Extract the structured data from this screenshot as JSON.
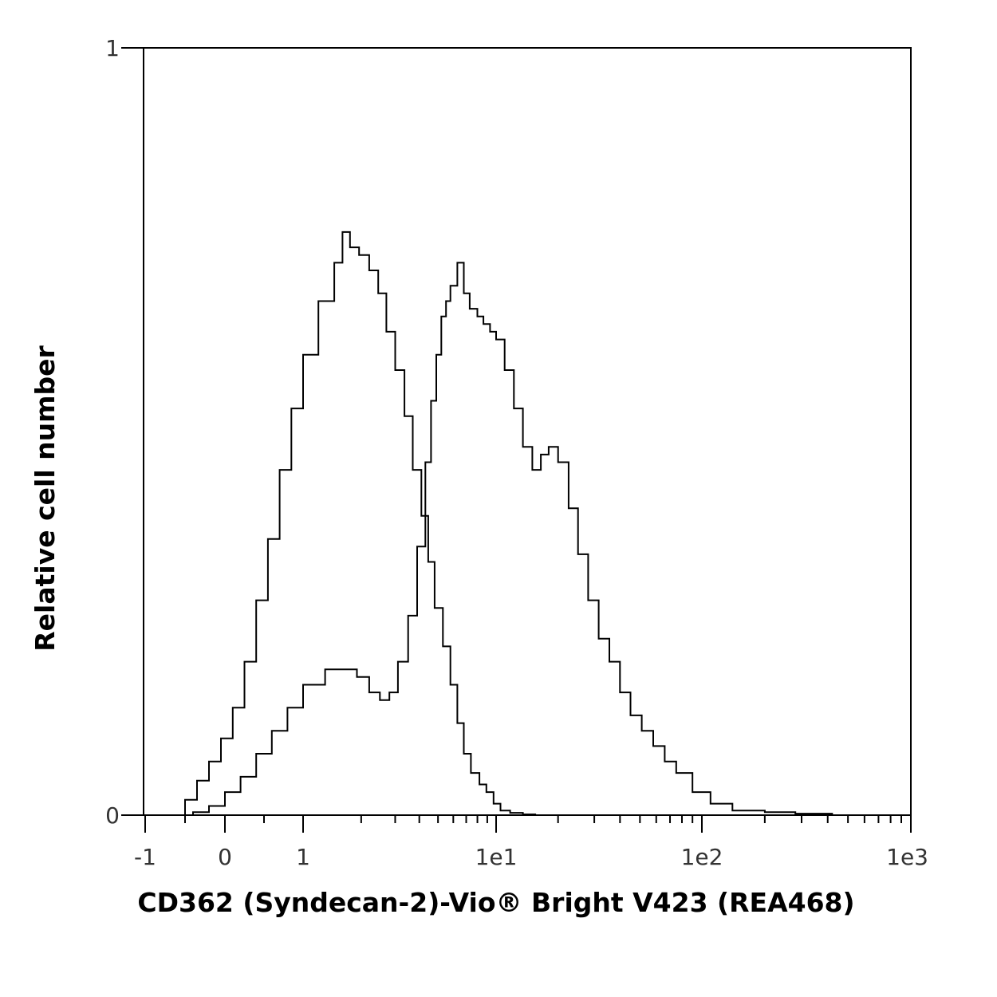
{
  "chart_data": {
    "type": "line",
    "xlabel": "CD362 (Syndecan-2)-Vio® Bright V423 (REA468)",
    "ylabel": "Relative cell number",
    "x_scale": "biexponential (linear near 0, log above)",
    "x_tick_labels": [
      "-1",
      "0",
      "1",
      "1e1",
      "1e2",
      "1e3"
    ],
    "x_ticks": [
      -1,
      0,
      1,
      10,
      100,
      1000
    ],
    "y_tick_labels": [
      "0",
      "1"
    ],
    "y_ticks": [
      0,
      1
    ],
    "ylim": [
      0,
      1
    ],
    "xlim": [
      -1,
      1000
    ],
    "grid": false,
    "legend": "none",
    "colors": {
      "line": "#000000",
      "frame": "#000000",
      "tick_text": "#333333"
    },
    "series": [
      {
        "x": [
          -0.65,
          -0.5,
          -0.35,
          -0.2,
          -0.05,
          0.1,
          0.25,
          0.4,
          0.55,
          0.7,
          0.85,
          1.0,
          1.2,
          1.45,
          1.6,
          1.75,
          1.95,
          2.2,
          2.45,
          2.7,
          3.0,
          3.35,
          3.7,
          4.1,
          4.45,
          4.8,
          5.3,
          5.8,
          6.3,
          6.8,
          7.4,
          8.2,
          8.9,
          9.7,
          10.5,
          11.7,
          13.5,
          15.5,
          19.5
        ],
        "y": [
          0.0,
          0.02,
          0.045,
          0.07,
          0.1,
          0.14,
          0.2,
          0.28,
          0.36,
          0.45,
          0.53,
          0.6,
          0.67,
          0.72,
          0.76,
          0.74,
          0.73,
          0.71,
          0.68,
          0.63,
          0.58,
          0.52,
          0.45,
          0.39,
          0.33,
          0.27,
          0.22,
          0.17,
          0.12,
          0.08,
          0.055,
          0.04,
          0.03,
          0.015,
          0.006,
          0.003,
          0.001,
          0.0,
          0.0
        ]
      },
      {
        "x": [
          -0.6,
          -0.4,
          -0.2,
          0.0,
          0.2,
          0.4,
          0.6,
          0.8,
          1.0,
          1.3,
          1.6,
          1.9,
          2.2,
          2.5,
          2.8,
          3.1,
          3.5,
          3.9,
          4.3,
          4.6,
          4.9,
          5.2,
          5.5,
          5.8,
          6.3,
          6.8,
          7.3,
          8.0,
          8.6,
          9.3,
          10.0,
          11.0,
          12.2,
          13.5,
          15.0,
          16.5,
          18.0,
          20.0,
          22.5,
          25.0,
          28.0,
          31.5,
          35.5,
          40.0,
          45.0,
          51.0,
          58.0,
          66.0,
          75.0,
          90.0,
          110.0,
          140.0,
          200.0,
          280.0,
          420.0
        ],
        "y": [
          0.0,
          0.004,
          0.012,
          0.03,
          0.05,
          0.08,
          0.11,
          0.14,
          0.17,
          0.19,
          0.19,
          0.18,
          0.16,
          0.15,
          0.16,
          0.2,
          0.26,
          0.35,
          0.46,
          0.54,
          0.6,
          0.65,
          0.67,
          0.69,
          0.72,
          0.68,
          0.66,
          0.65,
          0.64,
          0.63,
          0.62,
          0.58,
          0.53,
          0.48,
          0.45,
          0.47,
          0.48,
          0.46,
          0.4,
          0.34,
          0.28,
          0.23,
          0.2,
          0.16,
          0.13,
          0.11,
          0.09,
          0.07,
          0.055,
          0.03,
          0.015,
          0.006,
          0.004,
          0.002,
          0.003
        ]
      }
    ]
  }
}
